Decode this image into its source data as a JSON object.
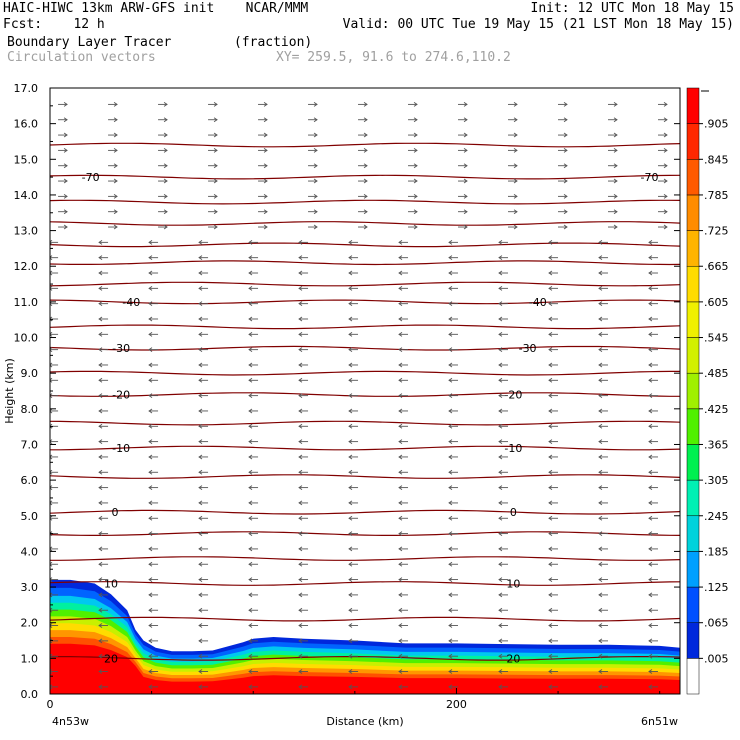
{
  "header": {
    "line1_left": "HAIC-HIWC 13km ARW-GFS init    NCAR/MMM",
    "line1_right": "Init: 12 UTC Mon 18 May 15",
    "line2_left": "Fcst:    12 h",
    "line2_right": "Valid: 00 UTC Tue 19 May 15 (21 LST Mon 18 May 15)",
    "line3_left": "Boundary Layer Tracer        (fraction)",
    "line4_left": "Circulation vectors",
    "line4_right": "XY= 259.5, 91.6 to 274.6,110.2"
  },
  "chart_data": {
    "type": "heatmap",
    "title": "Boundary Layer Tracer (fraction)",
    "xlabel": "Distance (km)",
    "ylabel": "Height (km)",
    "xlim": [
      0,
      310
    ],
    "ylim": [
      0.0,
      17.0
    ],
    "x_ticks": [
      {
        "value": 0,
        "label": "0"
      },
      {
        "value": 200,
        "label": "200"
      }
    ],
    "x_endpoints": [
      "4n53w",
      "6n51w"
    ],
    "y_ticks": [
      "0.0",
      "1.0",
      "2.0",
      "3.0",
      "4.0",
      "5.0",
      "6.0",
      "7.0",
      "8.0",
      "9.0",
      "10.0",
      "11.0",
      "12.0",
      "13.0",
      "14.0",
      "15.0",
      "16.0",
      "17.0"
    ],
    "colorbar": {
      "labels": [
        ".005",
        ".065",
        ".125",
        ".185",
        ".245",
        ".305",
        ".365",
        ".425",
        ".485",
        ".545",
        ".605",
        ".665",
        ".725",
        ".785",
        ".845",
        ".905"
      ],
      "colors": [
        "#ffffff",
        "#0028dc",
        "#0050ff",
        "#00a0ff",
        "#00d2dc",
        "#00f0b4",
        "#00f050",
        "#50f000",
        "#a0f000",
        "#d2f000",
        "#f0f000",
        "#ffdc00",
        "#ffb400",
        "#ff8c00",
        "#ff5a00",
        "#ff2800",
        "#ff0000"
      ]
    },
    "tracer_boundary": {
      "x_km": [
        0,
        10,
        22,
        30,
        38,
        42,
        46,
        52,
        60,
        70,
        80,
        95,
        100,
        110,
        125,
        150,
        175,
        200,
        225,
        250,
        275,
        300,
        310
      ],
      "top_km": [
        3.2,
        3.2,
        3.1,
        2.8,
        2.35,
        1.8,
        1.5,
        1.3,
        1.2,
        1.2,
        1.22,
        1.45,
        1.55,
        1.6,
        1.55,
        1.5,
        1.42,
        1.42,
        1.4,
        1.38,
        1.38,
        1.35,
        1.3
      ]
    },
    "temperature_contours": [
      {
        "label": "-70",
        "height_km": 14.5
      },
      {
        "label": "-40",
        "height_km": 11.0
      },
      {
        "label": "-30",
        "height_km": 9.7
      },
      {
        "label": "-20",
        "height_km": 8.4
      },
      {
        "label": "-10",
        "height_km": 6.9
      },
      {
        "label": "0",
        "height_km": 5.1
      },
      {
        "label": "10",
        "height_km": 3.1
      },
      {
        "label": "20",
        "height_km": 1.0
      }
    ],
    "unlabeled_contour_heights_km": [
      15.4,
      13.8,
      13.2,
      12.6,
      12.1,
      11.5,
      10.3,
      9.0,
      7.6,
      6.1,
      4.5,
      3.8,
      2.1
    ],
    "vectors": {
      "upper_direction": "east",
      "lower_direction": "west",
      "reversal_height_km": 13.0
    }
  }
}
